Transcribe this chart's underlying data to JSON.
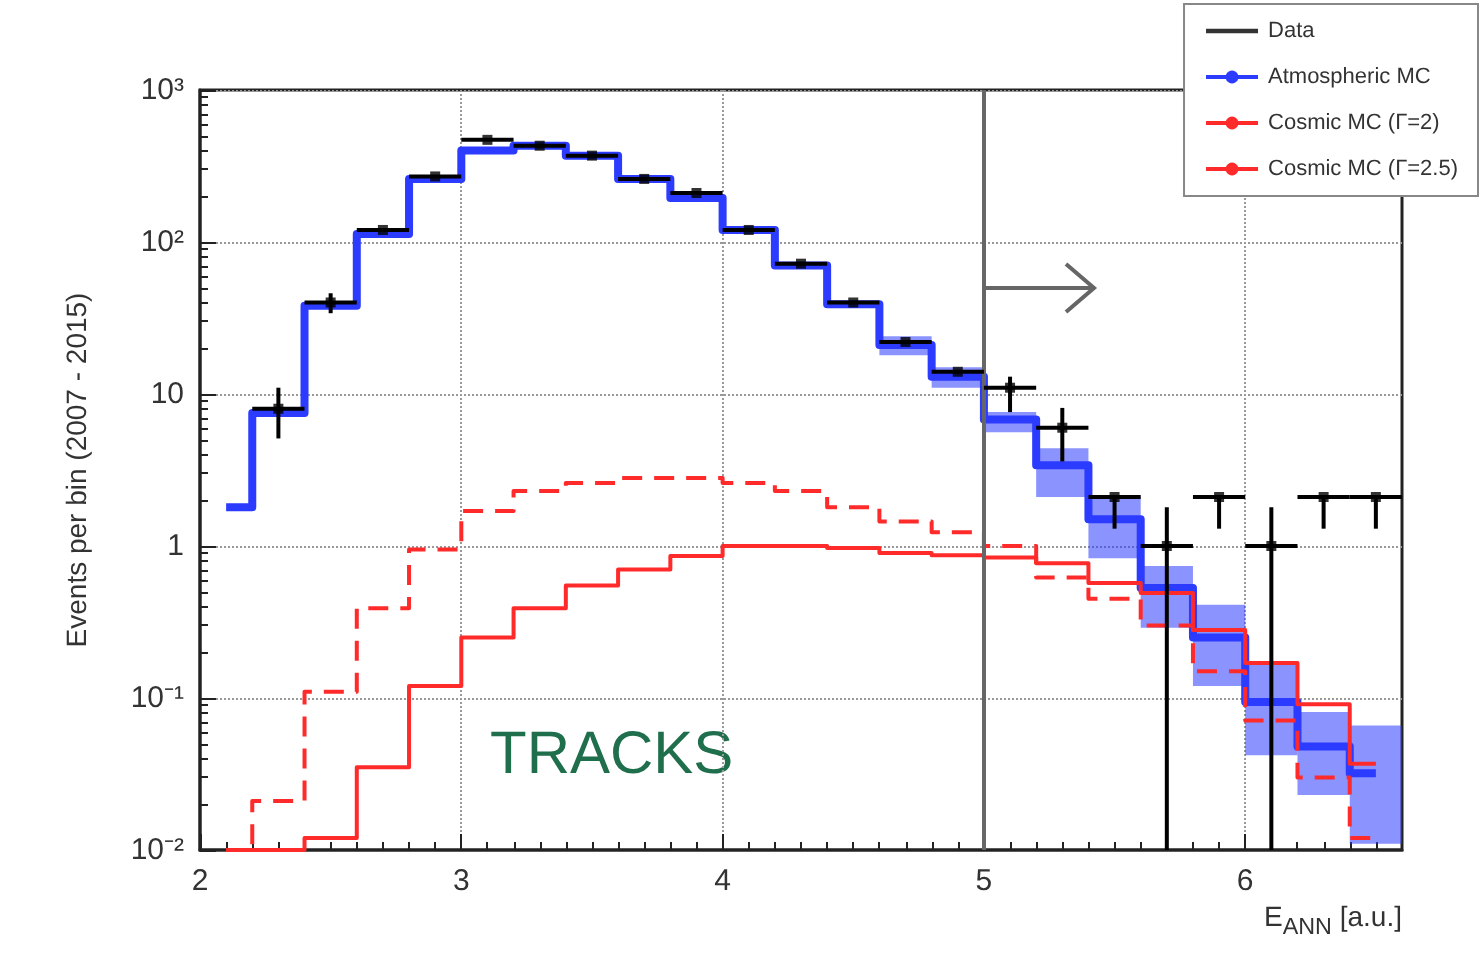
{
  "chart_data": {
    "type": "step",
    "xlabel": "E$_{ANN}$ [a.u.]",
    "ylabel": "Events per bin (2007 - 2015)",
    "x": [
      2.1,
      2.3,
      2.5,
      2.7,
      2.9,
      3.1,
      3.3,
      3.5,
      3.7,
      3.9,
      4.1,
      4.3,
      4.5,
      4.7,
      4.9,
      5.1,
      5.3,
      5.5,
      5.7,
      5.9,
      6.1,
      6.3,
      6.5
    ],
    "series": [
      {
        "name": "Data",
        "type": "scatter",
        "color": "#000000",
        "marker": "square",
        "x": [
          2.3,
          2.5,
          2.7,
          2.9,
          3.1,
          3.3,
          3.5,
          3.7,
          3.9,
          4.1,
          4.3,
          4.5,
          4.7,
          4.9,
          5.1,
          5.3,
          5.5,
          5.7,
          5.9,
          6.1,
          6.3,
          6.5
        ],
        "values": [
          8,
          40,
          120,
          270,
          470,
          430,
          370,
          260,
          210,
          120,
          72,
          40,
          22,
          14,
          11,
          6,
          2.1,
          1,
          2.1,
          1,
          2.1,
          2.1
        ],
        "errors": [
          [
            5.1,
            11
          ],
          [
            34,
            46
          ],
          null,
          null,
          null,
          null,
          null,
          null,
          null,
          null,
          null,
          null,
          null,
          null,
          [
            7.6,
            13
          ],
          [
            3.6,
            8.1
          ],
          [
            1.3,
            2.1
          ],
          [
            0.01,
            1.8
          ],
          [
            1.3,
            2.1
          ],
          [
            0.01,
            1.8
          ],
          [
            1.3,
            2.1
          ],
          [
            1.3,
            2.1
          ]
        ],
        "xerrors": [
          0.1,
          0.1,
          0.1,
          0.1,
          0.1,
          0.1,
          0.1,
          0.1,
          0.1,
          0.1,
          0.1,
          0.1,
          0.1,
          0.1,
          0.1,
          0.1,
          0.1,
          0.1,
          0.1,
          0.1,
          0.1,
          0.1
        ]
      },
      {
        "name": "Atmospheric MC",
        "color": "#2b3bff",
        "values": [
          1.8,
          7.5,
          38,
          113,
          260,
          400,
          430,
          370,
          260,
          195,
          120,
          70,
          39,
          21,
          13,
          6.8,
          3.4,
          1.5,
          0.53,
          0.25,
          0.094,
          0.048,
          0.032
        ],
        "errors": [
          null,
          null,
          null,
          null,
          null,
          null,
          null,
          null,
          null,
          null,
          null,
          null,
          null,
          [
            18,
            24
          ],
          [
            11,
            15
          ],
          [
            5.6,
            7.6
          ],
          [
            2.1,
            4.4
          ],
          [
            0.83,
            2.1
          ],
          [
            0.29,
            0.74
          ],
          [
            0.12,
            0.41
          ],
          [
            0.042,
            0.17
          ],
          [
            0.023,
            0.081
          ],
          [
            0.011,
            0.066
          ]
        ]
      },
      {
        "name": "Cosmic MC (Γ=2)",
        "color": "#ff2a2a",
        "line_style": "solid",
        "values": [
          0.01,
          0.01,
          0.012,
          0.035,
          0.12,
          0.25,
          0.39,
          0.55,
          0.7,
          0.86,
          1.0,
          1.0,
          0.97,
          0.9,
          0.87,
          0.84,
          0.77,
          0.57,
          0.49,
          0.28,
          0.17,
          0.091,
          0.037
        ]
      },
      {
        "name": "Cosmic MC (Γ=2.5)",
        "color": "#ff2a2a",
        "line_style": "dashed",
        "values": [
          0.01,
          0.021,
          0.11,
          0.39,
          0.95,
          1.7,
          2.3,
          2.6,
          2.8,
          2.8,
          2.6,
          2.3,
          1.8,
          1.45,
          1.23,
          1.0,
          0.62,
          0.45,
          0.3,
          0.15,
          0.071,
          0.03,
          0.012
        ]
      }
    ],
    "xlim": [
      2,
      6.6
    ],
    "xticks": [
      2,
      3,
      4,
      5,
      6
    ],
    "ylim": [
      0.01,
      1000
    ],
    "yticks": [
      {
        "value": 0.01,
        "label": "10⁻²"
      },
      {
        "value": 0.1,
        "label": "10⁻¹"
      },
      1,
      10,
      {
        "value": 100,
        "label": "10²"
      },
      {
        "value": 1000,
        "label": "10³"
      }
    ],
    "log": "y",
    "grid": true,
    "legend": "top right",
    "ref_lines": [
      {
        "axis": "x",
        "value": 5,
        "color": "#666666"
      }
    ],
    "annotations": [
      "TRACKS"
    ]
  }
}
